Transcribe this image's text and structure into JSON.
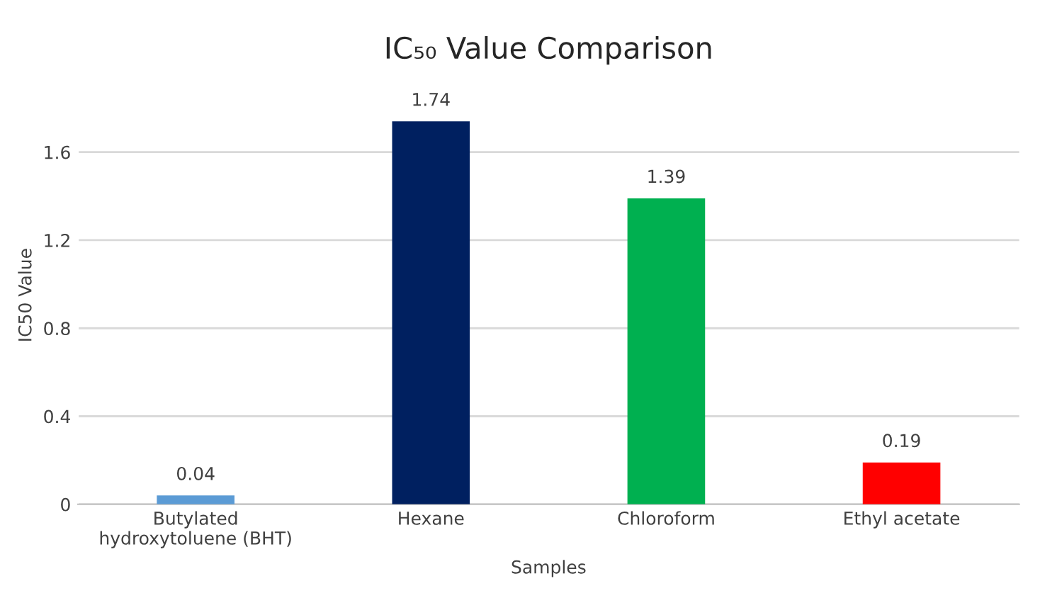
{
  "chart_data": {
    "type": "bar",
    "title": "IC₅₀ Value Comparison",
    "xlabel": "Samples",
    "ylabel": "IC50 Value",
    "categories": [
      "Butylated\nhydroxytoluene (BHT)",
      "Hexane",
      "Chloroform",
      "Ethyl acetate"
    ],
    "values": [
      0.04,
      1.74,
      1.39,
      0.19
    ],
    "colors": [
      "#5b9bd5",
      "#002060",
      "#00b050",
      "#ff0000"
    ],
    "ylim": [
      0,
      1.9
    ],
    "yticks": [
      0,
      0.4,
      0.8,
      1.2,
      1.6
    ],
    "grid": "y",
    "data_labels": true
  }
}
